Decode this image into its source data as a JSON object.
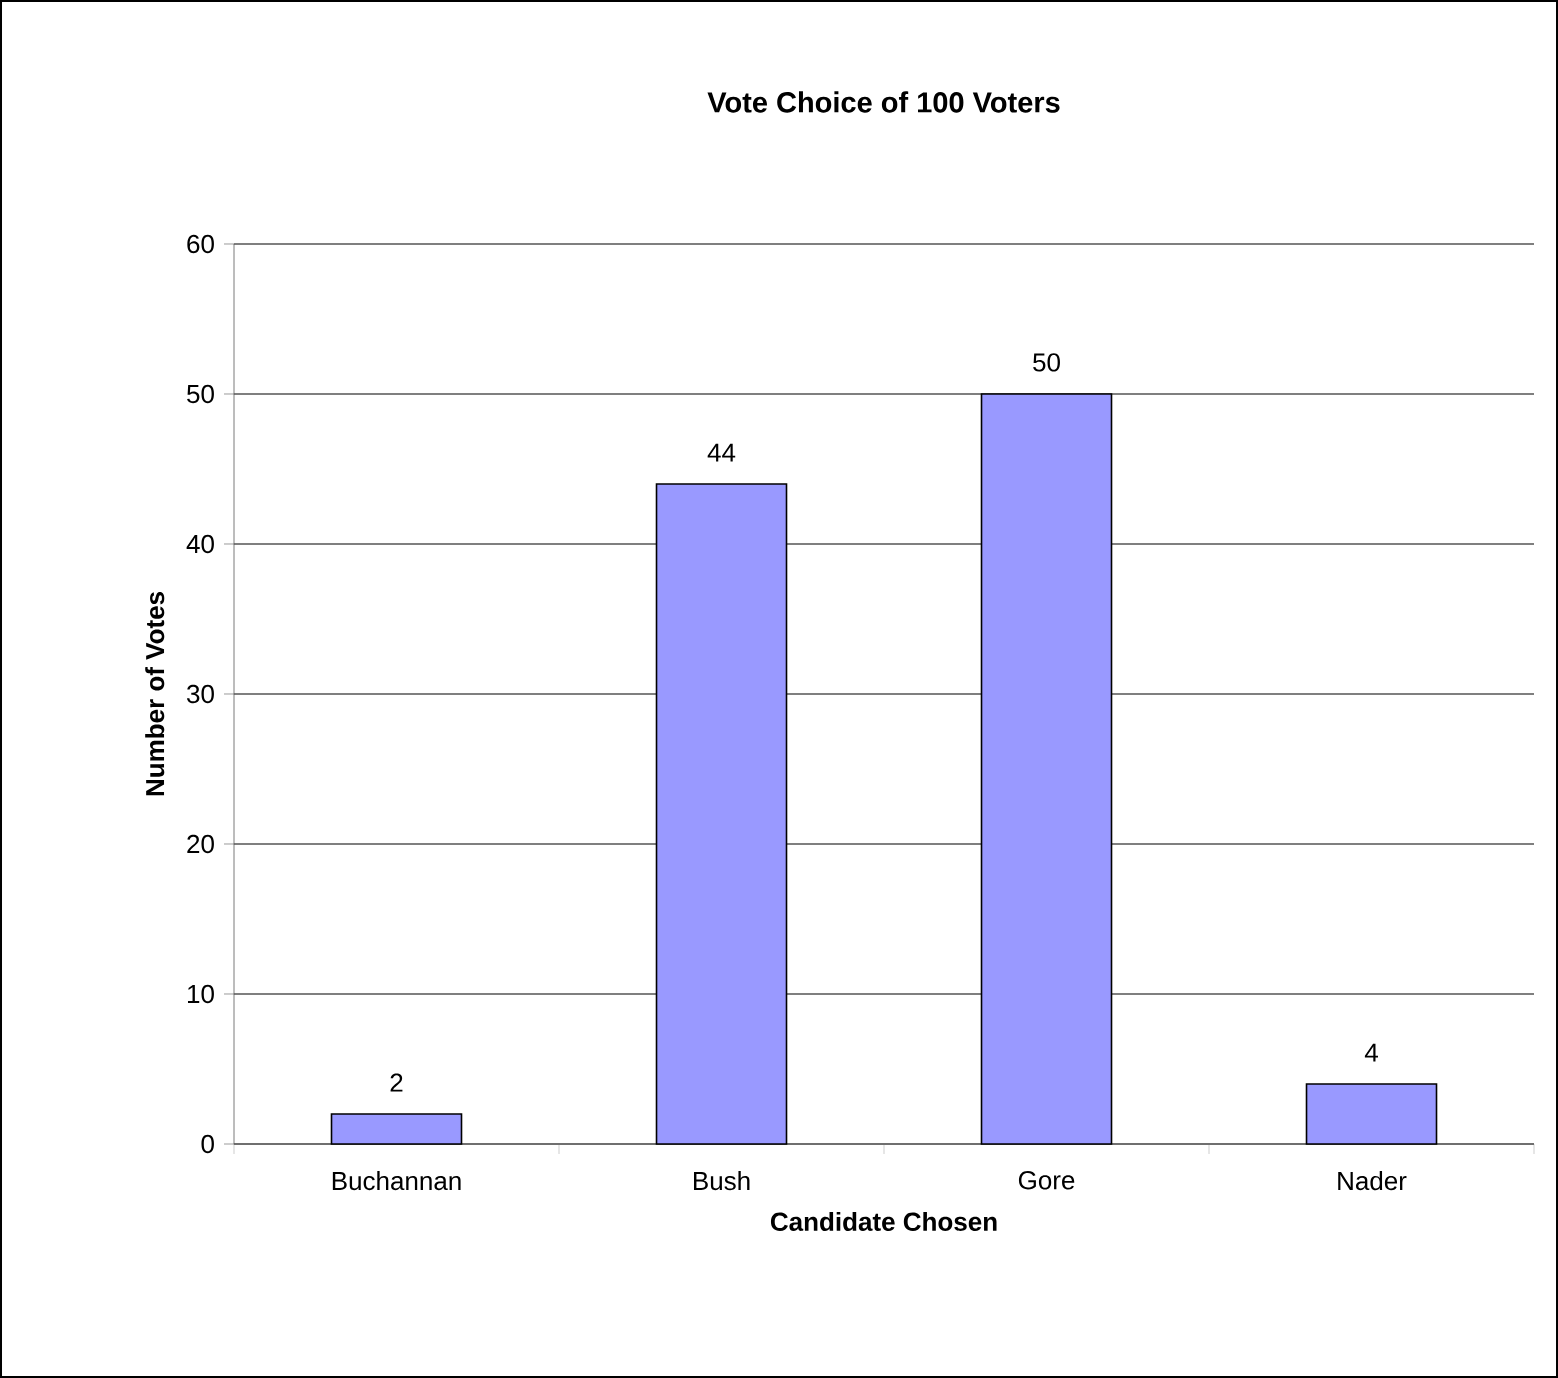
{
  "chart_data": {
    "type": "bar",
    "title": "Vote Choice of 100 Voters",
    "xlabel": "Candidate Chosen",
    "ylabel": "Number of Votes",
    "categories": [
      "Buchannan",
      "Bush",
      "Gore",
      "Nader"
    ],
    "values": [
      2,
      44,
      50,
      4
    ],
    "color": "#9999ff",
    "ylim": [
      0,
      60
    ],
    "yticks": [
      0,
      10,
      20,
      30,
      40,
      50,
      60
    ],
    "grid": "y",
    "data_labels": true
  }
}
